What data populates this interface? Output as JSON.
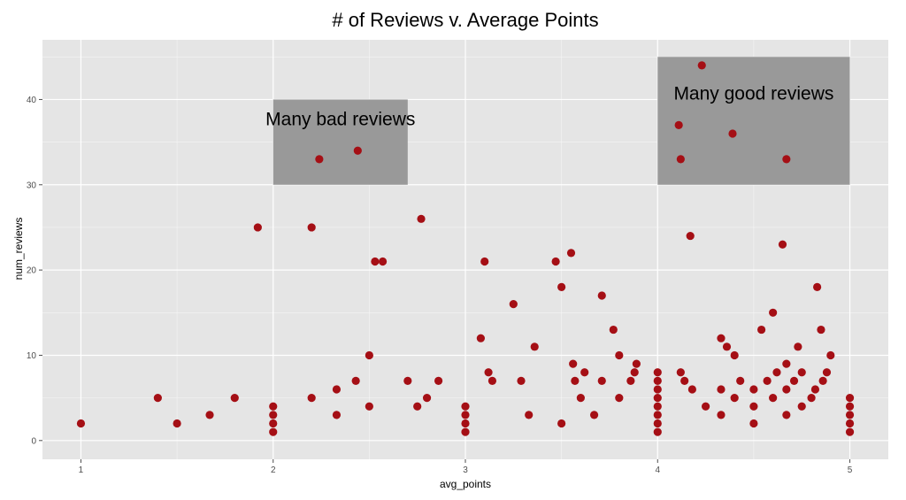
{
  "chart_data": {
    "type": "scatter",
    "title": "# of Reviews v. Average Points",
    "xlabel": "avg_points",
    "ylabel": "num_reviews",
    "xlim": [
      0.8,
      5.2
    ],
    "ylim": [
      -2.2,
      47
    ],
    "x_ticks": [
      1,
      2,
      3,
      4,
      5
    ],
    "y_ticks": [
      0,
      10,
      20,
      30,
      40
    ],
    "grid": true,
    "point_color": "#a50f15",
    "panel_color": "#e5e5e5",
    "grid_color": "#ffffff",
    "highlight_color": "#999999",
    "annotations": [
      {
        "text": "Many bad reviews",
        "x": 2.35,
        "y": 37,
        "rect": {
          "xmin": 2,
          "xmax": 2.7,
          "ymin": 30,
          "ymax": 40
        }
      },
      {
        "text": "Many good reviews",
        "x": 4.5,
        "y": 40,
        "rect": {
          "xmin": 4,
          "xmax": 5,
          "ymin": 30,
          "ymax": 45
        }
      }
    ],
    "points": [
      [
        1.0,
        2
      ],
      [
        1.4,
        5
      ],
      [
        1.5,
        2
      ],
      [
        1.67,
        3
      ],
      [
        1.8,
        5
      ],
      [
        1.92,
        25
      ],
      [
        2.0,
        1
      ],
      [
        2.0,
        2
      ],
      [
        2.0,
        3
      ],
      [
        2.0,
        4
      ],
      [
        2.2,
        25
      ],
      [
        2.2,
        5
      ],
      [
        2.24,
        33
      ],
      [
        2.33,
        6
      ],
      [
        2.33,
        3
      ],
      [
        2.43,
        7
      ],
      [
        2.44,
        34
      ],
      [
        2.5,
        10
      ],
      [
        2.5,
        4
      ],
      [
        2.53,
        21
      ],
      [
        2.57,
        21
      ],
      [
        2.7,
        7
      ],
      [
        2.75,
        4
      ],
      [
        2.77,
        26
      ],
      [
        2.8,
        5
      ],
      [
        2.86,
        7
      ],
      [
        3.0,
        1
      ],
      [
        3.0,
        2
      ],
      [
        3.0,
        3
      ],
      [
        3.0,
        4
      ],
      [
        3.08,
        12
      ],
      [
        3.1,
        21
      ],
      [
        3.12,
        8
      ],
      [
        3.14,
        7
      ],
      [
        3.25,
        16
      ],
      [
        3.29,
        7
      ],
      [
        3.33,
        3
      ],
      [
        3.36,
        11
      ],
      [
        3.47,
        21
      ],
      [
        3.5,
        18
      ],
      [
        3.5,
        2
      ],
      [
        3.55,
        22
      ],
      [
        3.56,
        9
      ],
      [
        3.57,
        7
      ],
      [
        3.6,
        5
      ],
      [
        3.62,
        8
      ],
      [
        3.67,
        3
      ],
      [
        3.71,
        17
      ],
      [
        3.71,
        7
      ],
      [
        3.77,
        13
      ],
      [
        3.8,
        10
      ],
      [
        3.8,
        5
      ],
      [
        3.86,
        7
      ],
      [
        3.88,
        8
      ],
      [
        3.89,
        9
      ],
      [
        4.0,
        1
      ],
      [
        4.0,
        2
      ],
      [
        4.0,
        3
      ],
      [
        4.0,
        4
      ],
      [
        4.0,
        5
      ],
      [
        4.0,
        6
      ],
      [
        4.0,
        7
      ],
      [
        4.0,
        8
      ],
      [
        4.11,
        37
      ],
      [
        4.12,
        33
      ],
      [
        4.12,
        8
      ],
      [
        4.14,
        7
      ],
      [
        4.17,
        24
      ],
      [
        4.18,
        6
      ],
      [
        4.23,
        44
      ],
      [
        4.25,
        4
      ],
      [
        4.33,
        12
      ],
      [
        4.33,
        6
      ],
      [
        4.33,
        3
      ],
      [
        4.36,
        11
      ],
      [
        4.39,
        36
      ],
      [
        4.4,
        10
      ],
      [
        4.4,
        5
      ],
      [
        4.43,
        7
      ],
      [
        4.5,
        6
      ],
      [
        4.5,
        4
      ],
      [
        4.5,
        2
      ],
      [
        4.54,
        13
      ],
      [
        4.57,
        7
      ],
      [
        4.6,
        15
      ],
      [
        4.6,
        5
      ],
      [
        4.62,
        8
      ],
      [
        4.65,
        23
      ],
      [
        4.67,
        33
      ],
      [
        4.67,
        9
      ],
      [
        4.67,
        6
      ],
      [
        4.67,
        3
      ],
      [
        4.71,
        7
      ],
      [
        4.73,
        11
      ],
      [
        4.75,
        8
      ],
      [
        4.75,
        4
      ],
      [
        4.8,
        5
      ],
      [
        4.82,
        6
      ],
      [
        4.83,
        18
      ],
      [
        4.85,
        13
      ],
      [
        4.86,
        7
      ],
      [
        4.88,
        8
      ],
      [
        4.9,
        10
      ],
      [
        5.0,
        1
      ],
      [
        5.0,
        2
      ],
      [
        5.0,
        3
      ],
      [
        5.0,
        4
      ],
      [
        5.0,
        5
      ]
    ]
  }
}
